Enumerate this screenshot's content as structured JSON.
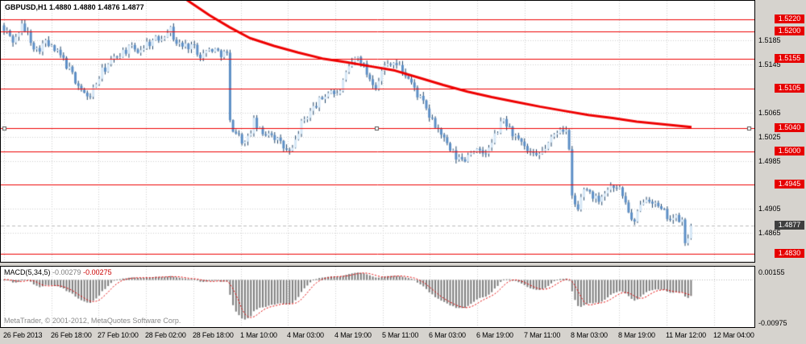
{
  "header": {
    "symbol_period": "GBPUSD,H1",
    "ohlc": "1.4880 1.4880 1.4876 1.4877"
  },
  "indicator": {
    "name": "MACD(5,34,5)",
    "value_main": "-0.00279",
    "value_signal": "-0.00275"
  },
  "footer": {
    "copyright": "MetaTrader, © 2001-2012, MetaQuotes Software Corp."
  },
  "colors": {
    "bull": "#d6e7f6",
    "bear": "#5d8fc6",
    "wick": "#1f4468",
    "ma_line": "#ee0000",
    "level_line": "#ee0000",
    "grid": "#cfcfcf",
    "current_line": "#bbbbbb",
    "histogram": "#7c7c7c",
    "signal_line": "#e00000",
    "badge_red": "#e60000",
    "badge_current": "#3f3f3f",
    "panel_bg": "#ffffff",
    "window_bg": "#d6d3ce"
  },
  "chart_data": {
    "type": "candlestick",
    "symbol": "GBPUSD",
    "timeframe": "H1",
    "title": "GBPUSD,H1 1.4880 1.4880 1.4876 1.4877",
    "bars": 232,
    "x_labels": [
      "26 Feb 2013",
      "26 Feb 18:00",
      "27 Feb 10:00",
      "28 Feb 02:00",
      "28 Feb 18:00",
      "1 Mar 10:00",
      "4 Mar 03:00",
      "4 Mar 19:00",
      "5 Mar 11:00",
      "6 Mar 03:00",
      "6 Mar 19:00",
      "7 Mar 11:00",
      "8 Mar 03:00",
      "8 Mar 19:00",
      "11 Mar 12:00",
      "12 Mar 04:00"
    ],
    "price_axis": {
      "max": 1.5251,
      "min": 1.4817
    },
    "red_levels": [
      1.522,
      1.52,
      1.5155,
      1.5105,
      1.504,
      1.5,
      1.4945,
      1.483
    ],
    "grid_levels": [
      1.5185,
      1.5145,
      1.5065,
      1.5025,
      1.4985,
      1.4905,
      1.4865
    ],
    "current_price": 1.4877,
    "current_price_text": "1.4877",
    "selected_level": 1.504,
    "price_path": [
      [
        8,
        1.52
      ],
      [
        18,
        1.5182
      ],
      [
        26,
        1.521
      ],
      [
        34,
        1.5198
      ],
      [
        45,
        1.5168
      ],
      [
        56,
        1.5182
      ],
      [
        66,
        1.517
      ],
      [
        76,
        1.5158
      ],
      [
        88,
        1.5132
      ],
      [
        98,
        1.511
      ],
      [
        104,
        1.5098
      ],
      [
        108,
        1.5088
      ],
      [
        116,
        1.5104
      ],
      [
        126,
        1.5132
      ],
      [
        138,
        1.515
      ],
      [
        150,
        1.5165
      ],
      [
        162,
        1.5172
      ],
      [
        172,
        1.5168
      ],
      [
        182,
        1.518
      ],
      [
        192,
        1.5185
      ],
      [
        202,
        1.5192
      ],
      [
        210,
        1.5208
      ],
      [
        218,
        1.5182
      ],
      [
        228,
        1.5175
      ],
      [
        238,
        1.5178
      ],
      [
        250,
        1.516
      ],
      [
        262,
        1.5172
      ],
      [
        272,
        1.5165
      ],
      [
        282,
        1.5162
      ],
      [
        284.5,
        1.505
      ],
      [
        295,
        1.5028
      ],
      [
        305,
        1.5012
      ],
      [
        315,
        1.505
      ],
      [
        325,
        1.5028
      ],
      [
        335,
        1.5035
      ],
      [
        345,
        1.5018
      ],
      [
        355,
        1.5002
      ],
      [
        362,
        1.4998
      ],
      [
        372,
        1.5042
      ],
      [
        382,
        1.5062
      ],
      [
        392,
        1.5078
      ],
      [
        402,
        1.5092
      ],
      [
        410,
        1.5104
      ],
      [
        418,
        1.5092
      ],
      [
        428,
        1.5122
      ],
      [
        438,
        1.5152
      ],
      [
        446,
        1.5158
      ],
      [
        456,
        1.5128
      ],
      [
        466,
        1.511
      ],
      [
        476,
        1.514
      ],
      [
        486,
        1.5152
      ],
      [
        496,
        1.514
      ],
      [
        506,
        1.5124
      ],
      [
        516,
        1.51
      ],
      [
        526,
        1.5078
      ],
      [
        536,
        1.505
      ],
      [
        546,
        1.5034
      ],
      [
        556,
        1.5006
      ],
      [
        566,
        1.499
      ],
      [
        576,
        1.4986
      ],
      [
        586,
        1.5006
      ],
      [
        596,
        1.4996
      ],
      [
        606,
        1.5002
      ],
      [
        616,
        1.5032
      ],
      [
        625,
        1.5054
      ],
      [
        635,
        1.5032
      ],
      [
        645,
        1.5014
      ],
      [
        655,
        1.5
      ],
      [
        665,
        1.4988
      ],
      [
        675,
        1.5004
      ],
      [
        685,
        1.5022
      ],
      [
        695,
        1.5042
      ],
      [
        703,
        1.5034
      ],
      [
        705,
        1.503
      ],
      [
        708.5,
        1.493
      ],
      [
        712,
        1.4916
      ],
      [
        717,
        1.4902
      ],
      [
        724,
        1.494
      ],
      [
        732,
        1.4934
      ],
      [
        740,
        1.492
      ],
      [
        748,
        1.493
      ],
      [
        757,
        1.4942
      ],
      [
        764,
        1.4946
      ],
      [
        772,
        1.493
      ],
      [
        780,
        1.4902
      ],
      [
        786,
        1.4874
      ],
      [
        792,
        1.49
      ],
      [
        800,
        1.4928
      ],
      [
        808,
        1.4922
      ],
      [
        816,
        1.4906
      ],
      [
        824,
        1.4898
      ],
      [
        832,
        1.489
      ],
      [
        840,
        1.4888
      ],
      [
        847,
        1.4884
      ],
      [
        849.5,
        1.4845
      ],
      [
        852,
        1.4842
      ],
      [
        856,
        1.4877
      ]
    ],
    "ma_line": [
      [
        212,
        1.528
      ],
      [
        230,
        1.5254
      ],
      [
        260,
        1.5227
      ],
      [
        285,
        1.5207
      ],
      [
        310,
        1.5189
      ],
      [
        340,
        1.5176
      ],
      [
        370,
        1.5165
      ],
      [
        400,
        1.5155
      ],
      [
        430,
        1.5149
      ],
      [
        460,
        1.5142
      ],
      [
        490,
        1.5135
      ],
      [
        520,
        1.5123
      ],
      [
        550,
        1.5111
      ],
      [
        580,
        1.51
      ],
      [
        610,
        1.5091
      ],
      [
        640,
        1.5083
      ],
      [
        670,
        1.5075
      ],
      [
        700,
        1.5068
      ],
      [
        730,
        1.5061
      ],
      [
        760,
        1.5056
      ],
      [
        790,
        1.505
      ],
      [
        820,
        1.5046
      ],
      [
        858,
        1.5041
      ]
    ],
    "macd_panel": {
      "type": "macd-histogram",
      "name": "MACD(5,34,5)",
      "values": [
        -0.00279,
        -0.00275
      ],
      "axis": {
        "max": 0.00275,
        "min": -0.0101
      },
      "scale_labels": [
        {
          "text": "0.00155",
          "value": 0.00155
        },
        {
          "text": "-0.00975",
          "value": -0.00975
        }
      ],
      "pos_target": 0.0015,
      "neg_target": -0.0085
    }
  }
}
